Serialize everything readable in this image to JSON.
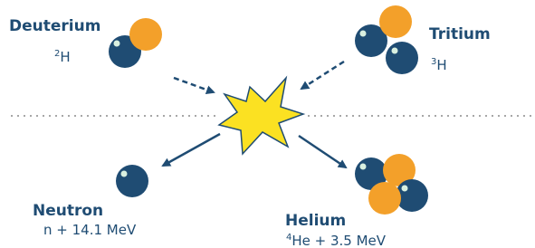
{
  "nodes": [
    {
      "name": "Deuterium",
      "mass": "2",
      "symbol": "H"
    },
    {
      "name": "Tritium",
      "mass": "3",
      "symbol": "H"
    },
    {
      "name": "Neutron",
      "formula": "n + 14.1 MeV"
    },
    {
      "name": "Helium",
      "mass": "4",
      "symbol": "He + 3.5 MeV"
    }
  ]
}
